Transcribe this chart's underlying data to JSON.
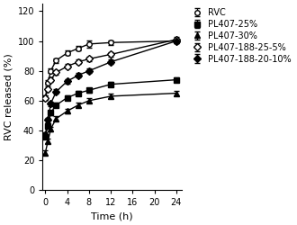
{
  "series": [
    {
      "label": "RVC",
      "marker": "o",
      "markerfacecolor": "white",
      "color": "black",
      "x": [
        0,
        0.5,
        1,
        2,
        4,
        6,
        8,
        12,
        24
      ],
      "y": [
        62,
        72,
        80,
        87,
        92,
        95,
        98,
        99,
        100
      ],
      "yerr": [
        1.5,
        1.5,
        1.5,
        1.5,
        1.5,
        1.5,
        2.5,
        1.5,
        1.5
      ]
    },
    {
      "label": "PL407-25%",
      "marker": "s",
      "markerfacecolor": "black",
      "color": "black",
      "x": [
        0,
        0.5,
        1,
        2,
        4,
        6,
        8,
        12,
        24
      ],
      "y": [
        36,
        43,
        52,
        57,
        62,
        65,
        67,
        71,
        74
      ],
      "yerr": [
        1.5,
        1.5,
        1.5,
        1.5,
        1.5,
        1.5,
        1.5,
        1.5,
        1.5
      ]
    },
    {
      "label": "PL407-30%",
      "marker": "^",
      "markerfacecolor": "black",
      "color": "black",
      "x": [
        0,
        0.5,
        1,
        2,
        4,
        6,
        8,
        12,
        24
      ],
      "y": [
        25,
        33,
        41,
        48,
        53,
        57,
        60,
        63,
        65
      ],
      "yerr": [
        1.5,
        1.5,
        1.5,
        1.5,
        1.5,
        1.5,
        1.5,
        1.5,
        1.5
      ]
    },
    {
      "label": "PL407-188-25-5%",
      "marker": "D",
      "markerfacecolor": "white",
      "color": "black",
      "x": [
        0,
        0.5,
        1,
        2,
        4,
        6,
        8,
        12,
        24
      ],
      "y": [
        62,
        68,
        74,
        79,
        83,
        86,
        88,
        91,
        101
      ],
      "yerr": [
        1.5,
        1.5,
        1.5,
        1.5,
        1.5,
        1.5,
        1.5,
        1.5,
        1.5
      ]
    },
    {
      "label": "PL407-188-20-10%",
      "marker": "D",
      "markerfacecolor": "black",
      "color": "black",
      "x": [
        0,
        0.5,
        1,
        2,
        4,
        6,
        8,
        12,
        24
      ],
      "y": [
        37,
        47,
        58,
        66,
        73,
        77,
        80,
        86,
        100
      ],
      "yerr": [
        1.5,
        1.5,
        1.5,
        1.5,
        1.5,
        1.5,
        1.5,
        1.5,
        1.5
      ]
    }
  ],
  "xlabel": "Time (h)",
  "ylabel": "RVC released (%)",
  "ylim": [
    0,
    125
  ],
  "xlim": [
    -0.5,
    25
  ],
  "yticks": [
    0,
    20,
    40,
    60,
    80,
    100,
    120
  ],
  "xticks": [
    0,
    4,
    8,
    12,
    16,
    20,
    24
  ],
  "background_color": "#ffffff",
  "markersize": 4,
  "linewidth": 1.0,
  "capsize": 2,
  "elinewidth": 0.8,
  "legend_fontsize": 7,
  "axis_fontsize": 8,
  "tick_fontsize": 7
}
